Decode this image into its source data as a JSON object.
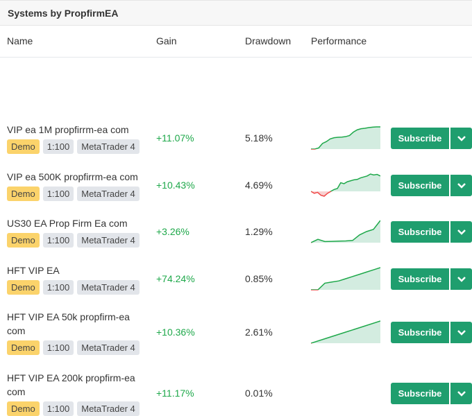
{
  "title": "Systems by PropfirmEA",
  "columns": {
    "name": "Name",
    "gain": "Gain",
    "drawdown": "Drawdown",
    "performance": "Performance"
  },
  "subscribe_label": "Subscribe",
  "colors": {
    "accent": "#1f9e6e",
    "gain": "#1ea84a",
    "loss": "#f04848"
  },
  "rows": [
    {
      "name": "VIP ea 1M propfirrm-ea com",
      "tags": [
        "Demo",
        "1:100",
        "MetaTrader 4"
      ],
      "gain": "+11.07%",
      "drawdown": "5.18%",
      "perf": [
        0,
        0,
        0.05,
        0.25,
        0.33,
        0.45,
        0.5,
        0.52,
        0.53,
        0.55,
        0.6,
        0.75,
        0.85,
        0.9,
        0.92,
        0.95,
        0.97,
        0.98,
        0.98
      ]
    },
    {
      "name": "VIP ea 500K propfirrm-ea com",
      "tags": [
        "Demo",
        "1:100",
        "MetaTrader 4"
      ],
      "gain": "+10.43%",
      "drawdown": "4.69%",
      "perf": [
        0,
        -0.1,
        -0.05,
        -0.2,
        -0.25,
        -0.1,
        0,
        0.1,
        0.15,
        0.45,
        0.4,
        0.5,
        0.55,
        0.6,
        0.62,
        0.7,
        0.75,
        0.8,
        0.9,
        0.85,
        0.88,
        0.8
      ]
    },
    {
      "name": "US30 EA Prop Firm Ea com",
      "tags": [
        "Demo",
        "1:100",
        "MetaTrader 4"
      ],
      "gain": "+3.26%",
      "drawdown": "1.29%",
      "perf": [
        0,
        0.15,
        0.05,
        0.06,
        0.07,
        0.08,
        0.1,
        0.35,
        0.5,
        0.6,
        1
      ]
    },
    {
      "name": "HFT VIP EA",
      "tags": [
        "Demo",
        "1:100",
        "MetaTrader 4"
      ],
      "gain": "+74.24%",
      "drawdown": "0.85%",
      "perf": [
        0,
        0,
        0.3,
        0.35,
        0.4,
        0.5,
        0.6,
        0.7,
        0.8,
        0.9,
        1
      ]
    },
    {
      "name": "HFT VIP EA 50k propfirm-ea com",
      "tags": [
        "Demo",
        "1:100",
        "MetaTrader 4"
      ],
      "gain": "+10.36%",
      "drawdown": "2.61%",
      "perf": [
        0,
        0.25,
        0.5,
        0.75,
        1
      ]
    },
    {
      "name": "HFT VIP EA 200k propfirm-ea com",
      "tags": [
        "Demo",
        "1:100",
        "MetaTrader 4"
      ],
      "gain": "+11.17%",
      "drawdown": "0.01%",
      "perf": []
    }
  ]
}
